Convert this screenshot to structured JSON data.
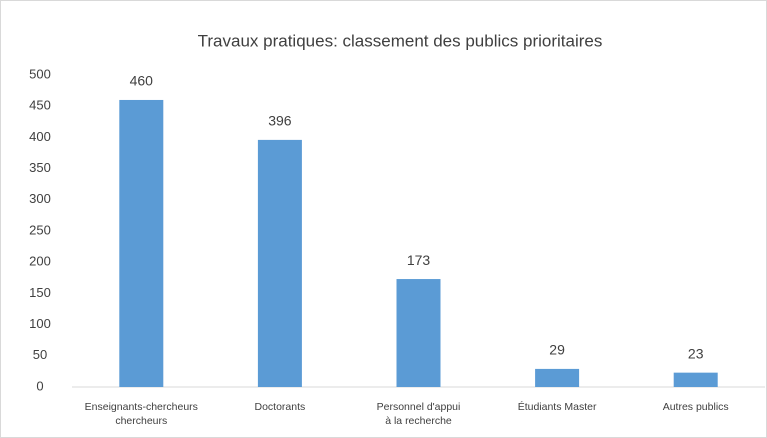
{
  "chart_data": {
    "type": "bar",
    "title": "Travaux pratiques: classement des publics prioritaires",
    "categories": [
      "Enseignants-chercheurs\nchercheurs",
      "Doctorants",
      "Personnel d'appui\nà la recherche",
      "Étudiants Master",
      "Autres publics"
    ],
    "values": [
      460,
      396,
      173,
      29,
      23
    ],
    "color": "#5b9bd5",
    "ylim": [
      0,
      500
    ],
    "yticks": [
      0,
      50,
      100,
      150,
      200,
      250,
      300,
      350,
      400,
      450,
      500
    ],
    "grid": false
  }
}
